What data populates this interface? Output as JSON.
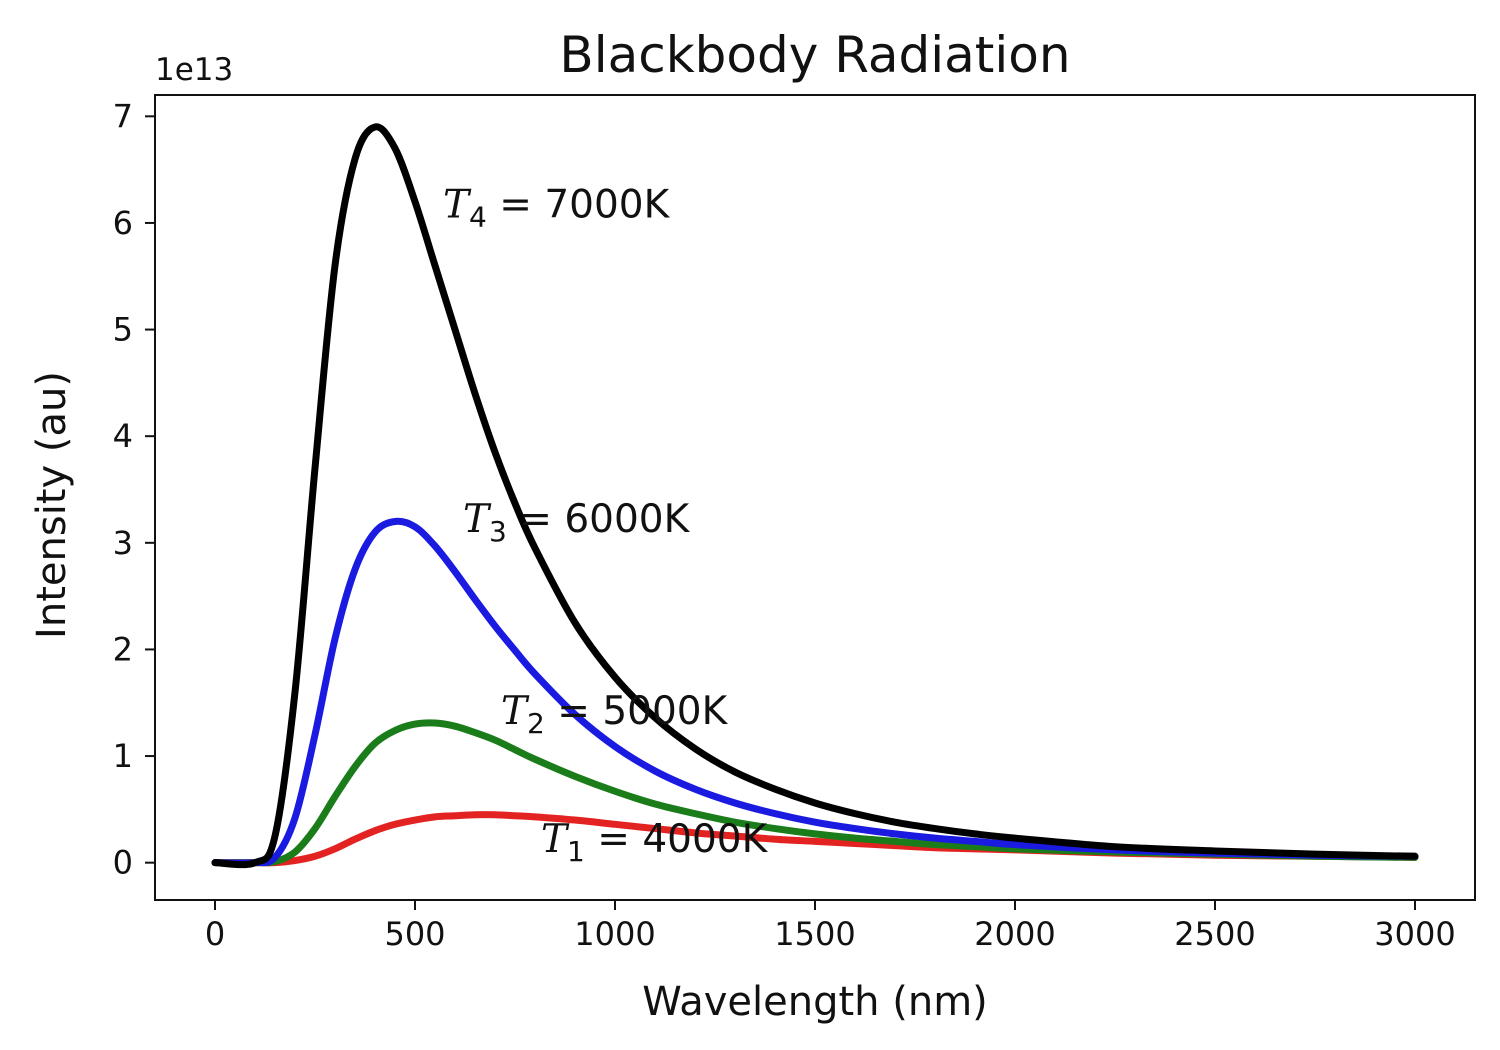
{
  "chart_data": {
    "type": "line",
    "title": "Blackbody Radiation",
    "xlabel": "Wavelength (nm)",
    "ylabel": "Intensity (au)",
    "y_offset_label": "1e13",
    "xlim": [
      -150,
      3150
    ],
    "ylim": [
      -0.35,
      7.2
    ],
    "x_ticks": [
      0,
      500,
      1000,
      1500,
      2000,
      2500,
      3000
    ],
    "y_ticks": [
      0,
      1,
      2,
      3,
      4,
      5,
      6,
      7
    ],
    "legend": false,
    "grid": false,
    "x": [
      0,
      100,
      150,
      200,
      250,
      300,
      350,
      400,
      450,
      500,
      550,
      600,
      650,
      700,
      750,
      800,
      900,
      1000,
      1100,
      1200,
      1300,
      1400,
      1500,
      1600,
      1700,
      1800,
      1900,
      2000,
      2250,
      2500,
      2750,
      3000
    ],
    "series": [
      {
        "color": "#e32222",
        "values": [
          0,
          0,
          0.0,
          0.02,
          0.06,
          0.13,
          0.22,
          0.3,
          0.36,
          0.4,
          0.43,
          0.44,
          0.45,
          0.45,
          0.44,
          0.43,
          0.4,
          0.36,
          0.32,
          0.28,
          0.25,
          0.22,
          0.2,
          0.18,
          0.16,
          0.14,
          0.13,
          0.12,
          0.09,
          0.07,
          0.06,
          0.05
        ]
      },
      {
        "color": "#1a7d1a",
        "values": [
          0,
          0,
          0.01,
          0.1,
          0.32,
          0.62,
          0.9,
          1.12,
          1.24,
          1.3,
          1.31,
          1.28,
          1.22,
          1.15,
          1.06,
          0.97,
          0.81,
          0.67,
          0.55,
          0.46,
          0.38,
          0.32,
          0.27,
          0.23,
          0.2,
          0.17,
          0.15,
          0.13,
          0.1,
          0.08,
          0.06,
          0.05
        ]
      },
      {
        "color": "#1a1ae0",
        "values": [
          0,
          0,
          0.05,
          0.42,
          1.2,
          2.1,
          2.75,
          3.1,
          3.2,
          3.15,
          2.97,
          2.73,
          2.47,
          2.22,
          1.99,
          1.77,
          1.39,
          1.09,
          0.86,
          0.69,
          0.56,
          0.46,
          0.38,
          0.32,
          0.27,
          0.23,
          0.2,
          0.17,
          0.12,
          0.09,
          0.07,
          0.06
        ]
      },
      {
        "color": "#000000",
        "values": [
          0,
          0,
          0.25,
          1.6,
          3.7,
          5.6,
          6.6,
          6.9,
          6.7,
          6.2,
          5.6,
          5.0,
          4.4,
          3.85,
          3.37,
          2.95,
          2.25,
          1.74,
          1.36,
          1.07,
          0.85,
          0.69,
          0.56,
          0.46,
          0.38,
          0.32,
          0.27,
          0.23,
          0.15,
          0.11,
          0.08,
          0.06
        ]
      }
    ],
    "annotations": [
      {
        "symbol": "T",
        "subscript": "4",
        "rest": " = 7000K",
        "x": 570,
        "y": 6.05
      },
      {
        "symbol": "T",
        "subscript": "3",
        "rest": " = 6000K",
        "x": 620,
        "y": 3.1
      },
      {
        "symbol": "T",
        "subscript": "2",
        "rest": " = 5000K",
        "x": 715,
        "y": 1.3
      },
      {
        "symbol": "T",
        "subscript": "1",
        "rest": " = 4000K",
        "x": 815,
        "y": 0.1
      }
    ]
  }
}
